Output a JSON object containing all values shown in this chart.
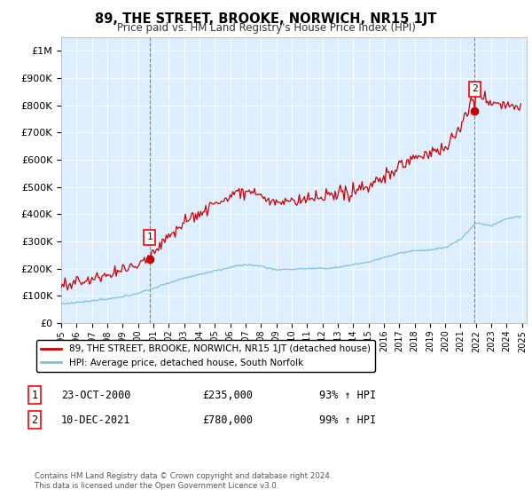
{
  "title": "89, THE STREET, BROOKE, NORWICH, NR15 1JT",
  "subtitle": "Price paid vs. HM Land Registry's House Price Index (HPI)",
  "ylim": [
    0,
    1050000
  ],
  "yticks": [
    0,
    100000,
    200000,
    300000,
    400000,
    500000,
    600000,
    700000,
    800000,
    900000,
    1000000
  ],
  "ytick_labels": [
    "£0",
    "£100K",
    "£200K",
    "£300K",
    "£400K",
    "£500K",
    "£600K",
    "£700K",
    "£800K",
    "£900K",
    "£1M"
  ],
  "hpi_color": "#7fbfdf",
  "price_color": "#cc0000",
  "sale1_year": 2000.79,
  "sale1_price": 235000,
  "sale2_year": 2021.92,
  "sale2_price": 780000,
  "legend_line1": "89, THE STREET, BROOKE, NORWICH, NR15 1JT (detached house)",
  "legend_line2": "HPI: Average price, detached house, South Norfolk",
  "note1_num": "1",
  "note1_date": "23-OCT-2000",
  "note1_price": "£235,000",
  "note1_hpi": "93% ↑ HPI",
  "note2_num": "2",
  "note2_date": "10-DEC-2021",
  "note2_price": "£780,000",
  "note2_hpi": "99% ↑ HPI",
  "footer": "Contains HM Land Registry data © Crown copyright and database right 2024.\nThis data is licensed under the Open Government Licence v3.0.",
  "plot_bg_color": "#ddeeff",
  "fig_bg_color": "#ffffff",
  "grid_color": "#ffffff"
}
